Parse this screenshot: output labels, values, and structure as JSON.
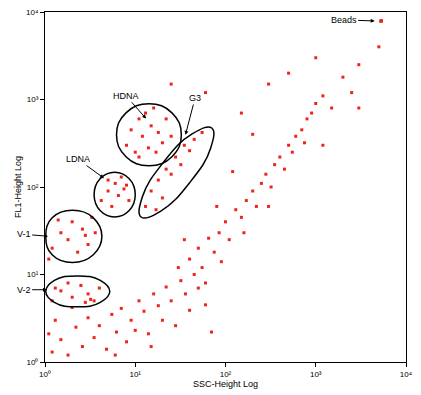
{
  "chart_data": {
    "type": "scatter",
    "x_label": "SSC-Height Log",
    "y_label": "FL1-Height Log",
    "log": true,
    "grid": false,
    "color": "#ee2418",
    "marker": "square",
    "xlim": [
      1,
      10000
    ],
    "ylim": [
      1,
      10000
    ],
    "xticks": [
      {
        "value": 1,
        "label": "10⁰"
      },
      {
        "value": 10,
        "label": "10¹"
      },
      {
        "value": 100,
        "label": "10²"
      },
      {
        "value": 1000,
        "label": "10³"
      },
      {
        "value": 10000,
        "label": "10⁴"
      }
    ],
    "yticks": [
      {
        "value": 1,
        "label": "10⁰"
      },
      {
        "value": 10,
        "label": "10¹"
      },
      {
        "value": 100,
        "label": "10²"
      },
      {
        "value": 1000,
        "label": "10³"
      },
      {
        "value": 10000,
        "label": "10⁴"
      }
    ],
    "x": [
      1.2,
      1.5,
      1.8,
      2.2,
      2.6,
      3,
      3.5,
      4,
      4.8,
      5.5,
      6.2,
      7,
      8,
      9,
      10,
      11,
      12.5,
      14,
      16,
      18,
      20,
      22,
      25,
      28,
      32,
      36,
      40,
      45,
      50,
      1.3,
      2.0,
      1.1,
      3.2,
      6,
      15,
      60,
      70,
      30,
      40,
      50,
      55,
      65,
      75,
      85,
      100,
      110,
      130,
      150,
      170,
      200,
      220,
      250,
      280,
      320,
      350,
      400,
      450,
      500,
      550,
      600,
      700,
      750,
      800,
      900,
      1000,
      1200,
      1500,
      2000,
      120,
      80,
      35,
      60,
      90,
      160,
      300,
      150,
      300,
      60,
      500,
      1000,
      3000,
      200,
      25,
      5000,
      3000,
      1200,
      2500,
      1.2,
      1.5,
      2,
      2.5,
      3,
      3.5,
      4,
      1.8,
      2.8,
      1.3,
      1.2,
      1.5,
      1.8,
      2,
      2.3,
      2.6,
      3,
      3.3,
      1.4,
      2.8,
      1.1,
      3.6,
      4.2,
      5,
      5.5,
      6,
      6.5,
      7,
      7.5,
      8.5,
      5,
      8,
      8,
      9,
      10,
      11,
      12,
      13,
      14,
      15,
      16,
      18,
      20,
      22,
      25,
      11,
      17,
      13,
      15,
      18,
      20,
      22,
      25,
      28,
      32,
      35,
      40,
      45,
      55,
      17,
      5300,
      5350,
      5250
    ],
    "y": [
      1.3,
      1.8,
      1.2,
      2.5,
      1.5,
      3.2,
      1.9,
      2.6,
      1.4,
      3.5,
      2.2,
      4.1,
      1.7,
      3,
      2.3,
      5,
      3.8,
      2.1,
      6,
      4.4,
      3,
      7.2,
      5,
      2.6,
      8.5,
      6,
      3.9,
      10,
      7,
      3,
      4.2,
      2.1,
      5.2,
      1.2,
      1.5,
      4.5,
      2.2,
      12,
      15,
      20,
      12,
      26,
      18,
      30,
      40,
      25,
      55,
      45,
      70,
      90,
      60,
      110,
      140,
      100,
      180,
      220,
      160,
      300,
      250,
      380,
      450,
      320,
      600,
      700,
      900,
      1100,
      800,
      1800,
      150,
      60,
      25,
      8,
      14,
      30,
      60,
      700,
      1500,
      1200,
      2000,
      3000,
      2500,
      400,
      1500,
      4000,
      800,
      300,
      1200,
      5,
      6.5,
      5.5,
      7.5,
      6,
      5,
      7,
      8,
      4.8,
      7,
      20,
      30,
      25,
      40,
      18,
      33,
      22,
      45,
      42,
      28,
      15,
      30,
      70,
      90,
      60,
      110,
      80,
      130,
      95,
      70,
      120,
      105,
      300,
      450,
      250,
      600,
      380,
      700,
      280,
      500,
      800,
      420,
      320,
      600,
      380,
      220,
      250,
      60,
      90,
      120,
      75,
      160,
      140,
      220,
      180,
      300,
      260,
      350,
      420,
      55,
      7900,
      7950,
      7850
    ],
    "gates": [
      {
        "x": [
          32.4,
          25.5,
          14.2,
          7.9,
          6.2,
          7.9,
          14.2,
          25.5
        ],
        "y": [
          395,
          703,
          893,
          703,
          395,
          222,
          175,
          222
        ]
      },
      {
        "x": [
          10.0,
          8.57,
          5.92,
          4.08,
          3.5,
          4.08,
          5.92,
          8.57
        ],
        "y": [
          81.7,
          124,
          147,
          124,
          81.7,
          54.0,
          45.5,
          54.0
        ]
      },
      {
        "x": [
          70.5,
          68.4,
          40.0,
          19.2,
          11.6,
          12.0,
          20.5,
          42.7
        ],
        "y": [
          472,
          277,
          112,
          53.1,
          45.4,
          77.3,
          191,
          404
        ]
      },
      {
        "x": [
          4.27,
          3.43,
          2.01,
          1.2,
          1.02,
          1.2,
          2.01,
          3.43
        ],
        "y": [
          27.3,
          44.4,
          54.2,
          44.4,
          27.3,
          16.8,
          13.7,
          16.8
        ]
      },
      {
        "x": [
          5.22,
          4.1,
          2.29,
          1.27,
          1.02,
          1.27,
          2.29,
          4.1
        ],
        "y": [
          6.41,
          8.55,
          9.64,
          8.55,
          6.41,
          4.81,
          4.27,
          4.81
        ]
      }
    ],
    "annotations": [
      {
        "text": "Beads",
        "x": 4500,
        "y": 7900,
        "text_x": 2040,
        "text_y": 8130
      },
      {
        "text": "HDNA",
        "x": 13.2,
        "y": 605,
        "text_x": 7.9,
        "text_y": 1100
      },
      {
        "text": "LDNA",
        "x": 4.5,
        "y": 126,
        "text_x": 2.3,
        "text_y": 209
      },
      {
        "text": "G3",
        "x": 36,
        "y": 395,
        "text_x": 46,
        "text_y": 1040
      },
      {
        "text": "V-1",
        "x": 1.08,
        "y": 27.4,
        "text_x": 0.58,
        "text_y": 28.8
      },
      {
        "text": "V-2",
        "x": 1.05,
        "y": 6.7,
        "text_x": 0.58,
        "text_y": 6.7
      }
    ]
  }
}
